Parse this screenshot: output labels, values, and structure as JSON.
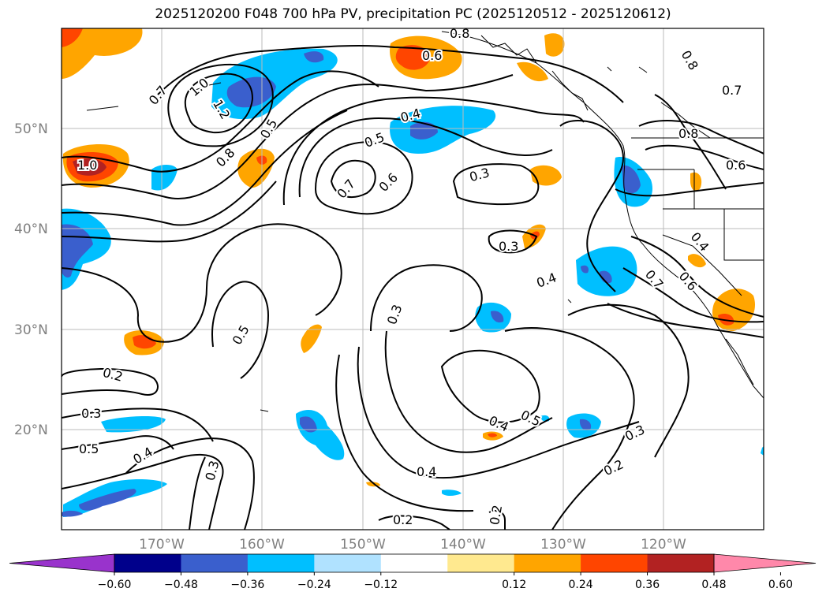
{
  "title": "2025120200 F048 700 hPa PV, precipitation PC (2025120512 - 2025120612)",
  "lat_labels": [
    "50°N",
    "40°N",
    "30°N",
    "20°N"
  ],
  "lon_labels": [
    "170°W",
    "160°W",
    "150°W",
    "140°W",
    "130°W",
    "120°W"
  ],
  "contour_labels": [
    "0.8",
    "0.6",
    "0.8",
    "0.7",
    "0.7",
    "1.0",
    "1.2",
    "0.5",
    "0.8",
    "0.4",
    "0.5",
    "1.0",
    "0.7",
    "0.6",
    "0.3",
    "0.8",
    "0.6",
    "0.4",
    "0.3",
    "0.4",
    "0.6",
    "0.7",
    "0.5",
    "0.3",
    "0.2",
    "0.3",
    "0.5",
    "0.4",
    "0.3",
    "0.4",
    "0.5",
    "0.4",
    "0.3",
    "0.2",
    "0.2",
    "0.2"
  ],
  "colorbar": {
    "ticks": [
      "−0.60",
      "−0.48",
      "−0.36",
      "−0.24",
      "−0.12",
      "0.12",
      "0.24",
      "0.36",
      "0.48",
      "0.60"
    ],
    "colors": [
      "#9933cc",
      "#00008b",
      "#3a5fcd",
      "#00bfff",
      "#b0e2ff",
      "#ffffff",
      "#ffe98f",
      "#ffa500",
      "#ff4500",
      "#b22222",
      "#ff88aa"
    ]
  }
}
